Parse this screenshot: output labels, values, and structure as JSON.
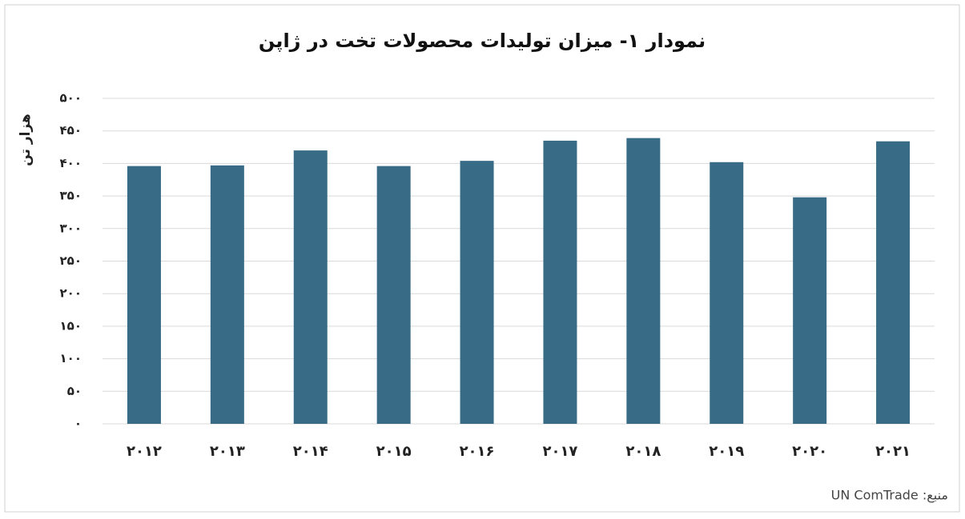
{
  "chart_data": {
    "type": "bar",
    "title": "نمودار ۱- میزان تولیدات محصولات تخت در ژاپن",
    "y_label": "هزار تن",
    "source": "منبع: UN ComTrade",
    "categories": [
      "۲۰۱۲",
      "۲۰۱۳",
      "۲۰۱۴",
      "۲۰۱۵",
      "۲۰۱۶",
      "۲۰۱۷",
      "۲۰۱۸",
      "۲۰۱۹",
      "۲۰۲۰",
      "۲۰۲۱"
    ],
    "values": [
      396,
      397,
      420,
      396,
      404,
      435,
      439,
      402,
      348,
      434
    ],
    "color": "#386b86",
    "ylim": [
      0,
      500
    ],
    "yticks": [
      {
        "value": 0,
        "label": "۰"
      },
      {
        "value": 50,
        "label": "۵۰"
      },
      {
        "value": 100,
        "label": "۱۰۰"
      },
      {
        "value": 150,
        "label": "۱۵۰"
      },
      {
        "value": 200,
        "label": "۲۰۰"
      },
      {
        "value": 250,
        "label": "۲۵۰"
      },
      {
        "value": 300,
        "label": "۳۰۰"
      },
      {
        "value": 350,
        "label": "۳۵۰"
      },
      {
        "value": 400,
        "label": "۴۰۰"
      },
      {
        "value": 450,
        "label": "۴۵۰"
      },
      {
        "value": 500,
        "label": "۵۰۰"
      }
    ],
    "grid": true
  }
}
